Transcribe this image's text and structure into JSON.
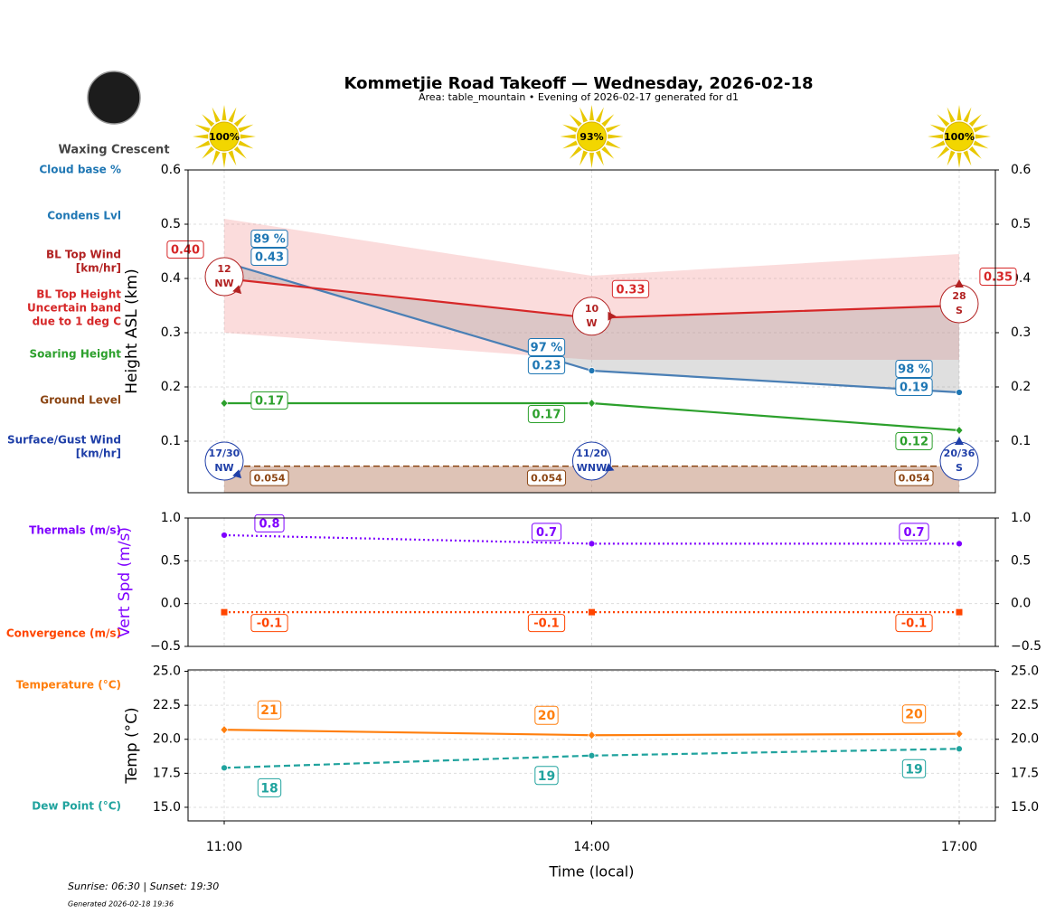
{
  "title": "Kommetjie Road Takeoff — Wednesday, 2026-02-18",
  "subtitle": "Area: table_mountain • Evening of 2026-02-17 generated for d1",
  "moon_phase": "Waxing Crescent",
  "sunshine": {
    "values": [
      100,
      93,
      100
    ],
    "value_labels": [
      "100%",
      "93%",
      "100%"
    ]
  },
  "footer": [
    "Sunrise: 06:30 | Sunset: 19:30",
    "Generated 2026-02-18 19:36"
  ],
  "chart_data": [
    {
      "type": "line",
      "ylabel": "Height ASL (km)",
      "ylim": [
        0.005,
        0.6
      ],
      "yticks": [
        0.1,
        0.2,
        0.3,
        0.4,
        0.5,
        0.6
      ],
      "grid": true,
      "series": [
        {
          "name": [
            "Cloud base %"
          ],
          "color": "#1f77b4",
          "values": [
            89,
            97,
            98
          ],
          "value_labels": [
            "89 %",
            "97 %",
            "98 %"
          ]
        },
        {
          "name": [
            "Condens Lvl"
          ],
          "color": "#1f77b4",
          "values": [
            0.43,
            0.23,
            0.19
          ],
          "marker": "circle",
          "linestyle": "solid"
        },
        {
          "name": [
            "BL Top Wind",
            "[km/hr]"
          ],
          "color": "#b22222",
          "values": [
            12,
            10,
            28
          ],
          "directions": [
            "NW",
            "W",
            "S"
          ]
        },
        {
          "name": [
            "BL Top Height",
            "Uncertain band",
            "due to 1 deg C"
          ],
          "color": "#d62728",
          "values": [
            0.4,
            0.327,
            0.35
          ],
          "value_labels": [
            "0.40",
            "0.33",
            "0.35"
          ],
          "band_low": [
            0.3,
            0.25,
            0.25
          ],
          "band_high": [
            0.51,
            0.405,
            0.445
          ],
          "linestyle": "solid"
        },
        {
          "name": [
            "Soaring Height"
          ],
          "color": "#2ca02c",
          "values": [
            0.17,
            0.17,
            0.12
          ],
          "marker": "diamond",
          "linestyle": "solid"
        },
        {
          "name": [
            "Ground Level"
          ],
          "color": "#8b4513",
          "values": [
            0.054,
            0.054,
            0.054
          ],
          "linestyle": "dashed"
        },
        {
          "name": [
            "Surface/Gust Wind",
            "[km/hr]"
          ],
          "color": "#1f3fa8",
          "values": [
            17,
            11,
            20
          ],
          "gusts": [
            30,
            20,
            36
          ],
          "value_labels": [
            "17/30",
            "11/20",
            "20/36"
          ],
          "directions": [
            "NW",
            "WNW",
            "S"
          ]
        }
      ]
    },
    {
      "type": "line",
      "ylabel": "Vert Spd (m/s)",
      "ylabel_color": "#7f00ff",
      "ylim": [
        -0.5,
        1.0
      ],
      "yticks": [
        {
          "value": -0.5,
          "label": "−0.5"
        },
        {
          "value": 0,
          "label": "0.0"
        },
        0.5,
        {
          "value": 1.0,
          "label": "1.0"
        }
      ],
      "grid": true,
      "series": [
        {
          "name": [
            "Thermals (m/s)"
          ],
          "color": "#7f00ff",
          "values": [
            0.8,
            0.7,
            0.7
          ],
          "marker": "circle",
          "linestyle": "dotted"
        },
        {
          "name": [
            "Convergence (m/s)"
          ],
          "color": "#ff4500",
          "values": [
            -0.1,
            -0.1,
            -0.1
          ],
          "marker": "square",
          "linestyle": "dotted"
        }
      ]
    },
    {
      "type": "line",
      "ylabel": "Temp (°C)",
      "xlabel": "Time (local)",
      "categories": [
        "11:00",
        "14:00",
        "17:00"
      ],
      "ylim": [
        14,
        25.1
      ],
      "yticks": [
        {
          "value": 15,
          "label": "15.0"
        },
        17.5,
        {
          "value": 20,
          "label": "20.0"
        },
        22.5,
        {
          "value": 25,
          "label": "25.0"
        }
      ],
      "grid": true,
      "series": [
        {
          "name": [
            "Temperature (°C)"
          ],
          "color": "#ff7f0e",
          "values": [
            20.7,
            20.3,
            20.4
          ],
          "value_labels": [
            "21",
            "20",
            "20"
          ],
          "marker": "diamond",
          "linestyle": "solid"
        },
        {
          "name": [
            "Dew Point (°C)"
          ],
          "color": "#20a39e",
          "values": [
            17.9,
            18.8,
            19.3
          ],
          "value_labels": [
            "18",
            "19",
            "19"
          ],
          "marker": "circle",
          "linestyle": "dashed"
        }
      ]
    }
  ]
}
